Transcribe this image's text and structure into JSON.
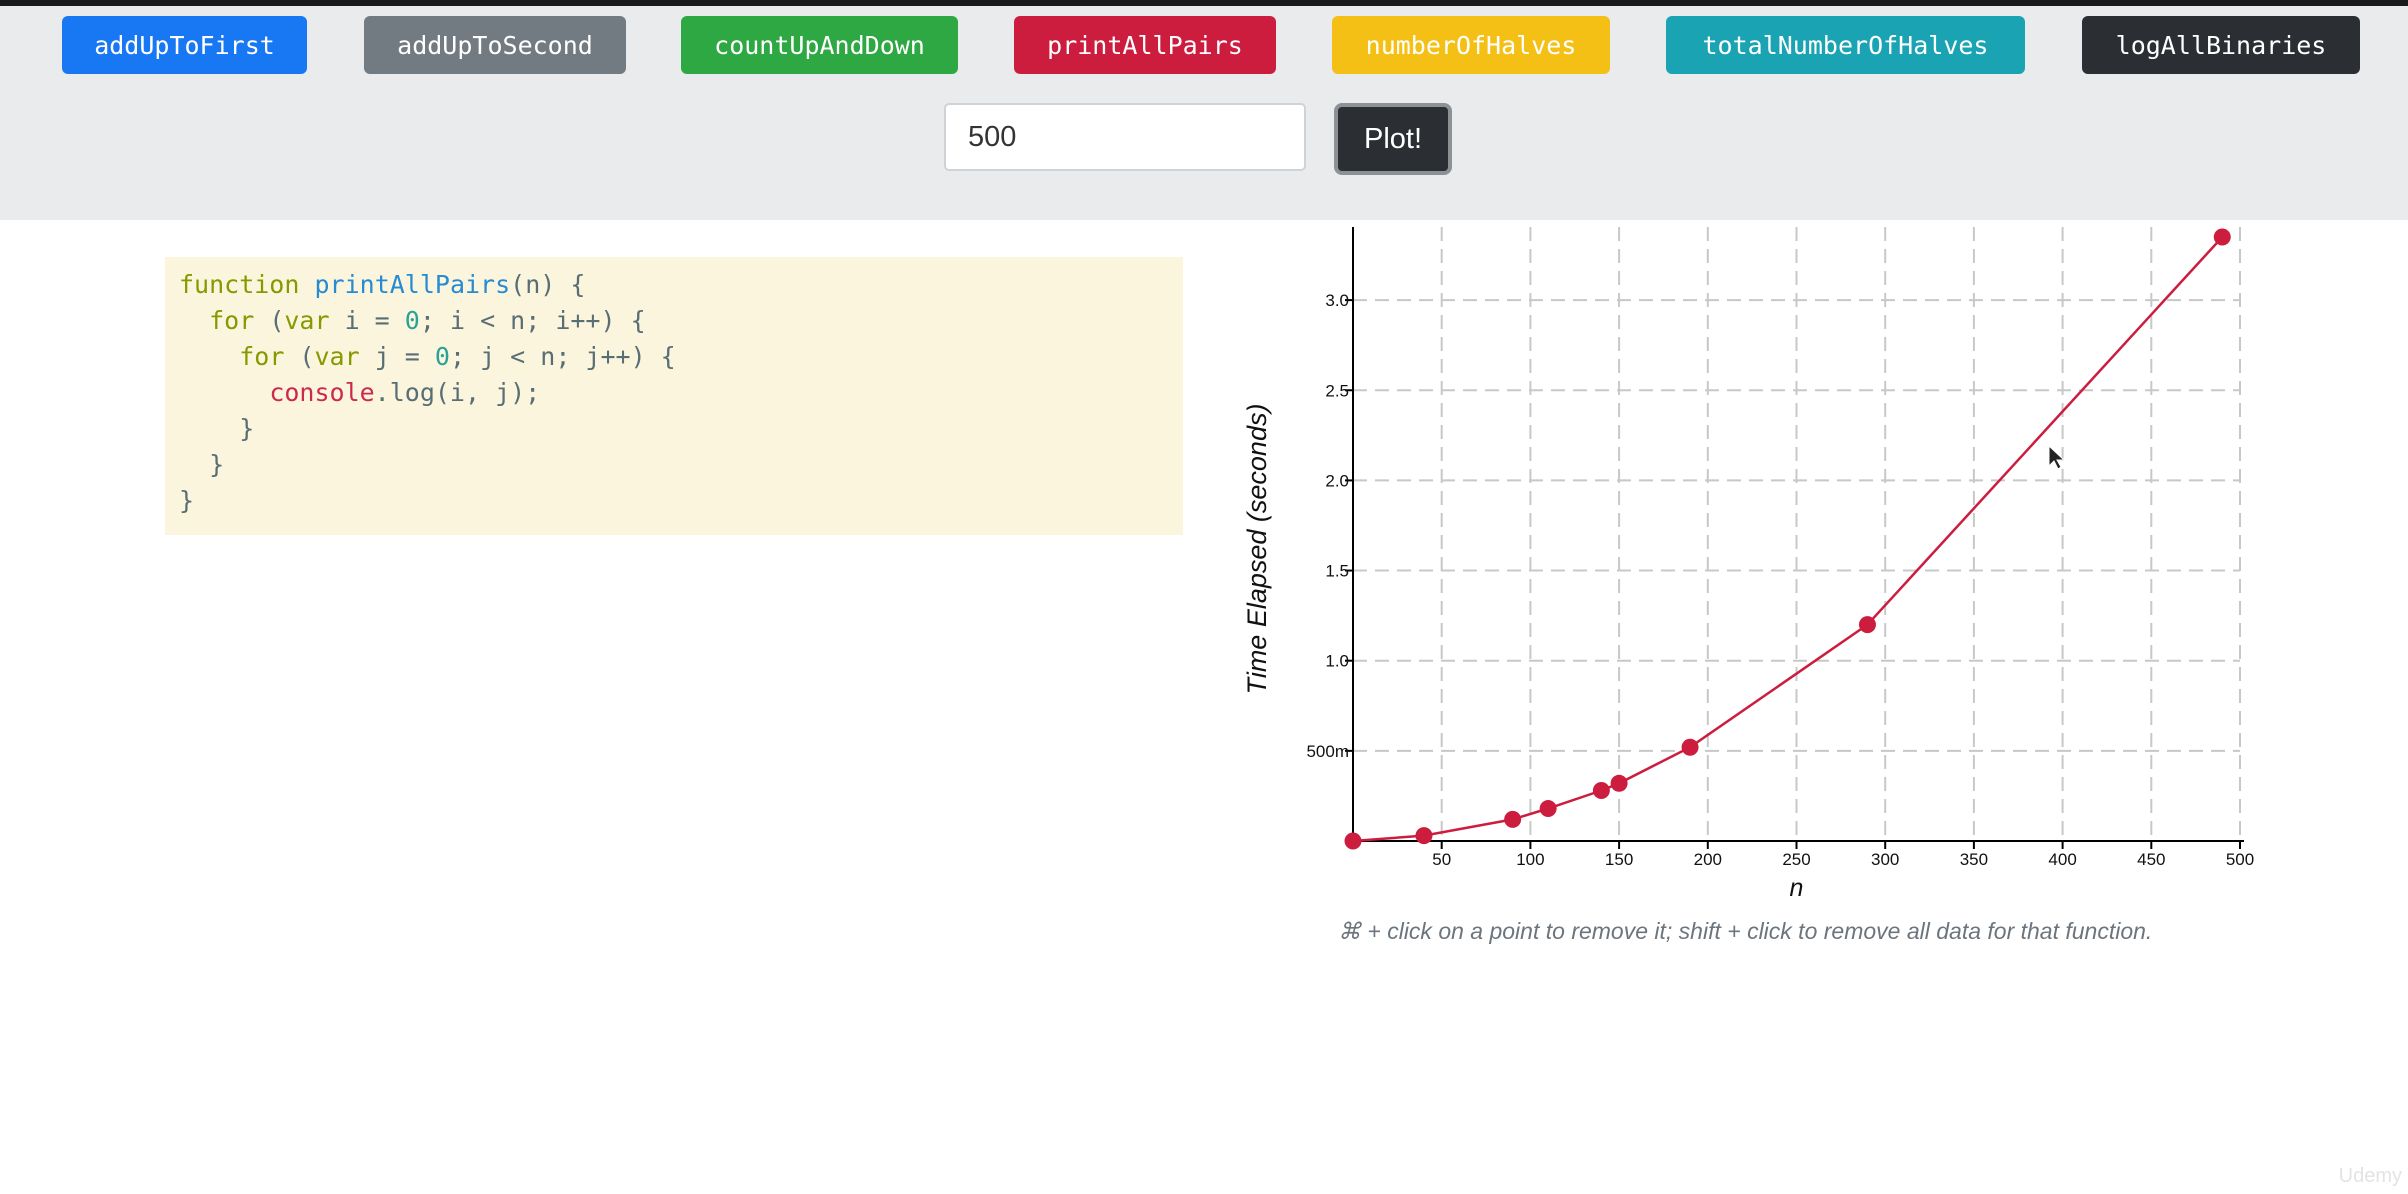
{
  "buttons": [
    {
      "label": "addUpToFirst",
      "color": "#1877f2"
    },
    {
      "label": "addUpToSecond",
      "color": "#737b82"
    },
    {
      "label": "countUpAndDown",
      "color": "#2ea843"
    },
    {
      "label": "printAllPairs",
      "color": "#cc1d3f"
    },
    {
      "label": "numberOfHalves",
      "color": "#f5c016"
    },
    {
      "label": "totalNumberOfHalves",
      "color": "#1aa3b3"
    },
    {
      "label": "logAllBinaries",
      "color": "#2b2f33"
    }
  ],
  "input": {
    "value": "500"
  },
  "plot_button": {
    "label": "Plot!"
  },
  "code": {
    "line1_kw": "function",
    "line1_name": "printAllPairs",
    "line1_rest": "(n) {",
    "line2_kw": "for",
    "line2_a": " (",
    "line2_var": "var",
    "line2_b": " i = ",
    "line2_num": "0",
    "line2_c": "; i < n; i++) {",
    "line3_kw": "for",
    "line3_a": " (",
    "line3_var": "var",
    "line3_b": " j = ",
    "line3_num": "0",
    "line3_c": "; j < n; j++) {",
    "line4_obj": "console",
    "line4_rest": ".log(i, j);",
    "line5": "}",
    "line6": "}",
    "line7": "}"
  },
  "chart_data": {
    "type": "line",
    "xlabel": "n",
    "ylabel": "Time Elapsed (seconds)",
    "x_ticks": [
      "50",
      "100",
      "150",
      "200",
      "250",
      "300",
      "350",
      "400",
      "450",
      "500"
    ],
    "y_ticks": [
      "500m",
      "1.0",
      "1.5",
      "2.0",
      "2.5",
      "3.0"
    ],
    "xlim": [
      0,
      500
    ],
    "ylim": [
      0,
      3.35
    ],
    "grid": true,
    "series": [
      {
        "color": "#cc1d3f",
        "points": [
          {
            "x": 0,
            "y": 0.0
          },
          {
            "x": 40,
            "y": 0.03
          },
          {
            "x": 90,
            "y": 0.12
          },
          {
            "x": 110,
            "y": 0.18
          },
          {
            "x": 140,
            "y": 0.28
          },
          {
            "x": 150,
            "y": 0.32
          },
          {
            "x": 190,
            "y": 0.52
          },
          {
            "x": 290,
            "y": 1.2
          },
          {
            "x": 490,
            "y": 3.35
          }
        ]
      }
    ]
  },
  "hint": "⌘ + click on a point to remove it; shift + click to remove all data for that function.",
  "watermark": "Udemy"
}
